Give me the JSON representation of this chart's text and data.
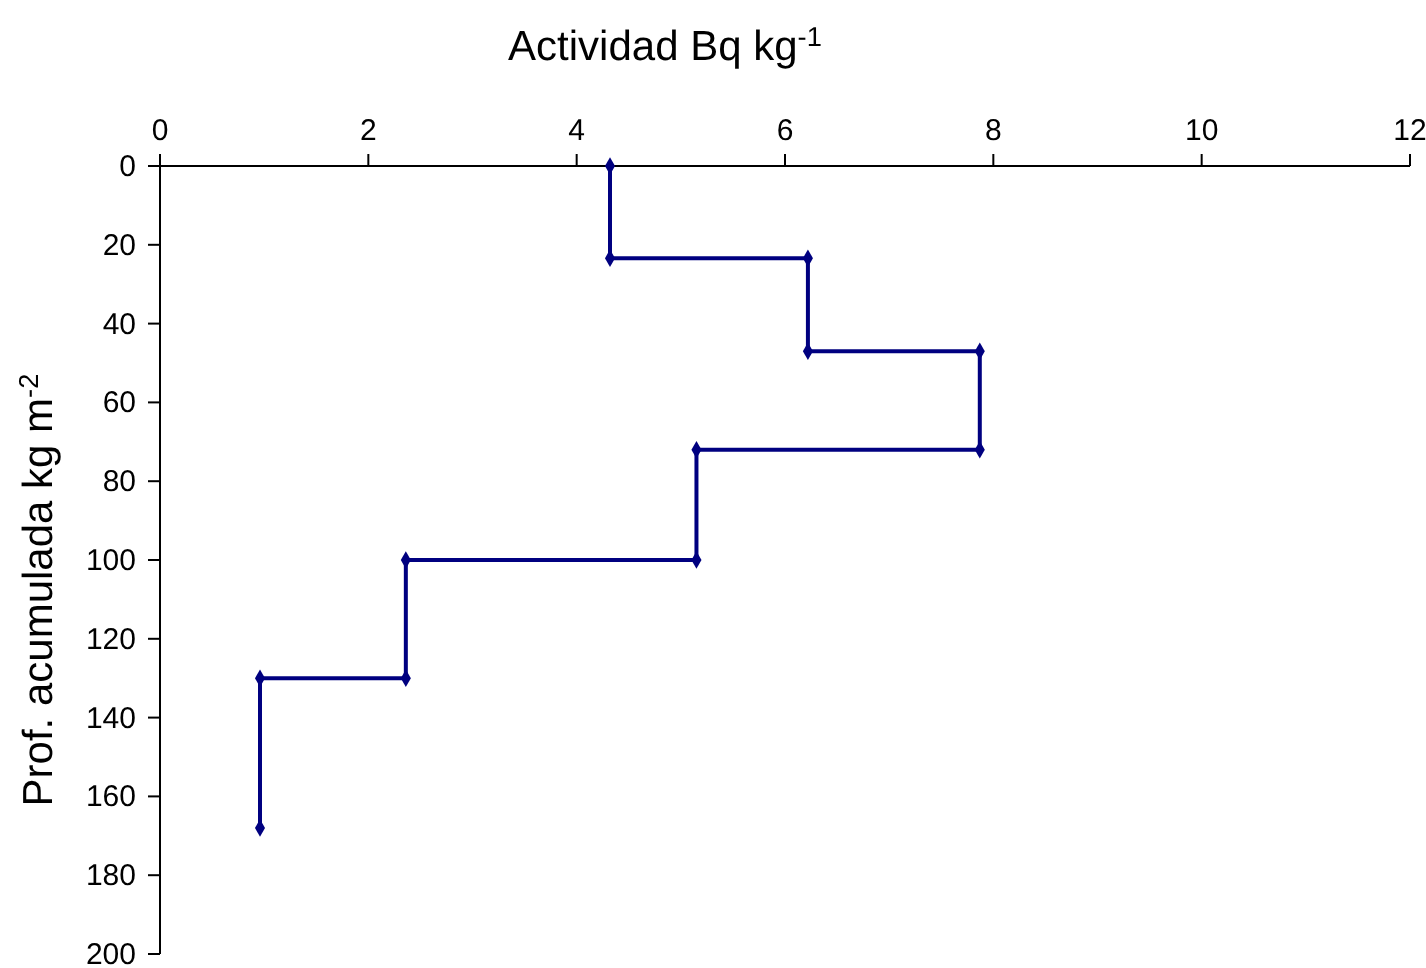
{
  "chart_data": {
    "type": "line",
    "xlabel": "Actividad Bq kg$^{-1}$",
    "ylabel": "Prof. acumulada kg m$^{-2}$",
    "xlim": [
      0,
      12
    ],
    "xticks": [
      0,
      2,
      4,
      6,
      8,
      10,
      12
    ],
    "ylim": [
      200,
      0
    ],
    "yticks": [
      0,
      20,
      40,
      60,
      80,
      100,
      120,
      140,
      160,
      180,
      200
    ],
    "grid": false,
    "marker": "diamond",
    "line_style": "solid",
    "series": [
      {
        "color": "#000080",
        "x": [
          4.32,
          4.32,
          6.22,
          6.22,
          7.87,
          7.87,
          5.15,
          5.15,
          2.36,
          2.36,
          0.96,
          0.96
        ],
        "values": [
          0,
          23.4,
          23.4,
          47,
          47,
          72,
          72,
          100,
          100,
          130,
          130,
          168
        ]
      }
    ]
  }
}
